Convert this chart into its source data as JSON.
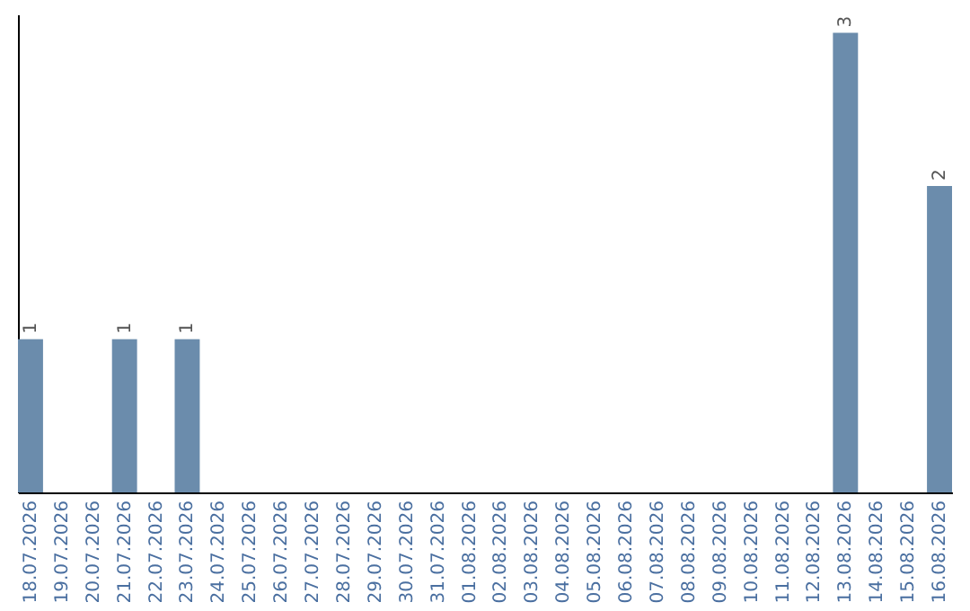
{
  "chart_data": {
    "type": "bar",
    "categories": [
      "18.07.2026",
      "19.07.2026",
      "20.07.2026",
      "21.07.2026",
      "22.07.2026",
      "23.07.2026",
      "24.07.2026",
      "25.07.2026",
      "26.07.2026",
      "27.07.2026",
      "28.07.2026",
      "29.07.2026",
      "30.07.2026",
      "31.07.2026",
      "01.08.2026",
      "02.08.2026",
      "03.08.2026",
      "04.08.2026",
      "05.08.2026",
      "06.08.2026",
      "07.08.2026",
      "08.08.2026",
      "09.08.2026",
      "10.08.2026",
      "11.08.2026",
      "12.08.2026",
      "13.08.2026",
      "14.08.2026",
      "15.08.2026",
      "16.08.2026"
    ],
    "values": [
      1,
      null,
      null,
      1,
      null,
      1,
      null,
      null,
      null,
      null,
      null,
      null,
      null,
      null,
      null,
      null,
      null,
      null,
      null,
      null,
      null,
      null,
      null,
      null,
      null,
      null,
      3,
      null,
      null,
      2
    ],
    "color": "#6b8cac",
    "data_labels": true
  }
}
